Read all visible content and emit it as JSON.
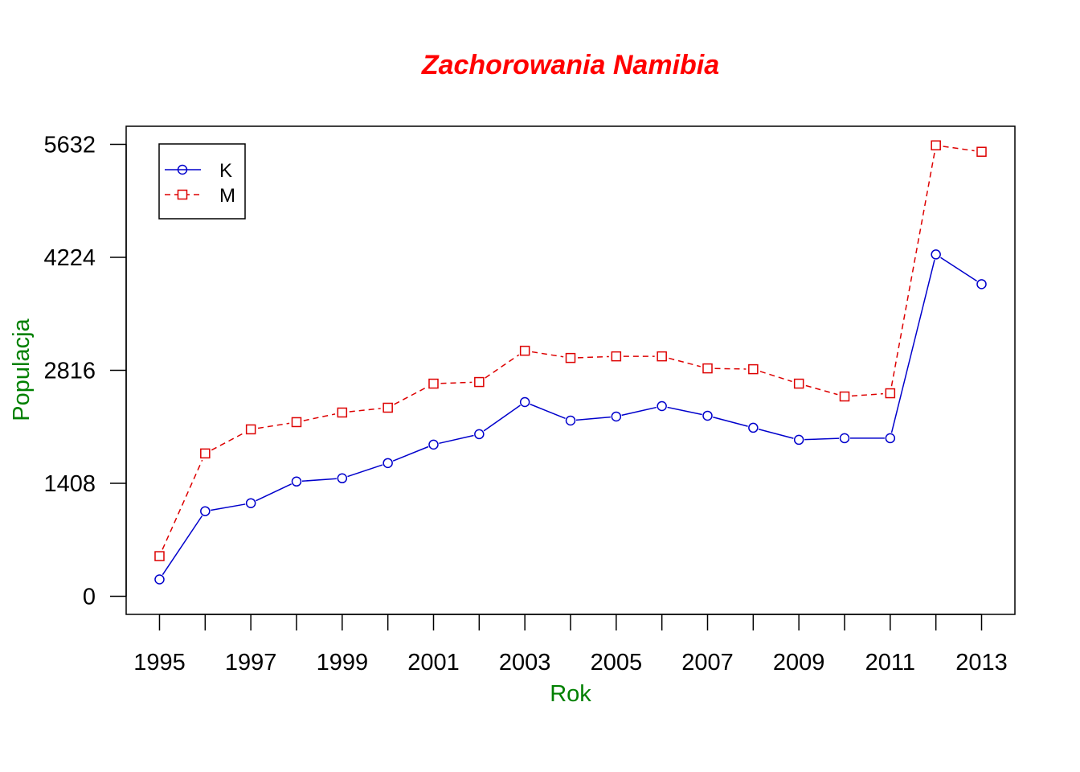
{
  "chart_data": {
    "type": "line",
    "title": "Zachorowania Namibia",
    "xlabel": "Rok",
    "ylabel": "Populacja",
    "x": [
      1995,
      1996,
      1997,
      1998,
      1999,
      2000,
      2001,
      2002,
      2003,
      2004,
      2005,
      2006,
      2007,
      2008,
      2009,
      2010,
      2011,
      2012,
      2013
    ],
    "x_tick_labels": [
      "1995",
      "1997",
      "1999",
      "2001",
      "2003",
      "2005",
      "2007",
      "2009",
      "2011",
      "2013"
    ],
    "y_tick_labels": [
      "0",
      "1408",
      "2816",
      "4224",
      "5632"
    ],
    "y_ticks": [
      0,
      1408,
      2816,
      4224,
      5632
    ],
    "xlim": [
      1994.27,
      2013.73
    ],
    "ylim": [
      -226,
      5858
    ],
    "grid": false,
    "legend_position": "top-left",
    "series": [
      {
        "name": "K",
        "color": "#0000cc",
        "line_style": "solid",
        "marker": "circle",
        "values": [
          210,
          1060,
          1160,
          1430,
          1470,
          1660,
          1890,
          2020,
          2420,
          2190,
          2240,
          2370,
          2250,
          2100,
          1950,
          1970,
          1970,
          4260,
          3890
        ]
      },
      {
        "name": "M",
        "color": "#dd0000",
        "line_style": "dashed",
        "marker": "square",
        "values": [
          500,
          1780,
          2080,
          2170,
          2290,
          2350,
          2650,
          2670,
          3060,
          2970,
          2990,
          2990,
          2840,
          2830,
          2650,
          2490,
          2530,
          5620,
          5540
        ]
      }
    ],
    "colors": {
      "title": "#ff0000",
      "axis_label": "#008000",
      "axes": "#000000"
    }
  }
}
